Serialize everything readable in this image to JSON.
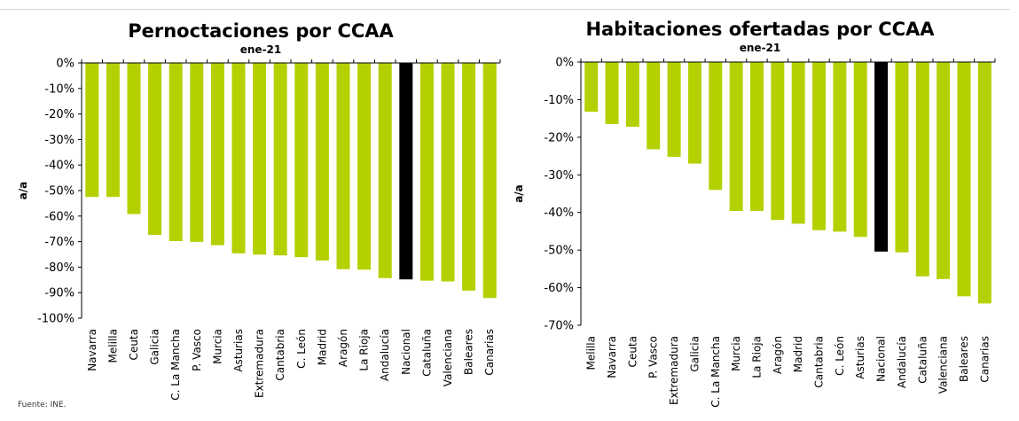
{
  "source": "Fuente: INE.",
  "colors": {
    "bar": "#B5D000",
    "highlight": "#000000",
    "axis": "#000000"
  },
  "chart_data": [
    {
      "type": "bar",
      "title": "Pernoctaciones por CCAA",
      "subtitle": "ene-21",
      "ylabel": "a/a",
      "ylim": [
        -100,
        0
      ],
      "yticks": [
        0,
        -10,
        -20,
        -30,
        -40,
        -50,
        -60,
        -70,
        -80,
        -90,
        -100
      ],
      "ytick_labels": [
        "0%",
        "-10%",
        "-20%",
        "-30%",
        "-40%",
        "-50%",
        "-60%",
        "-70%",
        "-80%",
        "-90%",
        "-100%"
      ],
      "highlight": "Nacional",
      "categories": [
        "Navarra",
        "Melilla",
        "Ceuta",
        "Galicia",
        "C. La Mancha",
        "P. Vasco",
        "Murcia",
        "Asturias",
        "Extremadura",
        "Cantabria",
        "C. León",
        "Madrid",
        "Aragón",
        "La Rioja",
        "Andalucía",
        "Nacional",
        "Cataluña",
        "Valenciana",
        "Baleares",
        "Canarias"
      ],
      "values": [
        -52.5,
        -52.5,
        -59.2,
        -67.4,
        -69.8,
        -70.1,
        -71.4,
        -74.6,
        -75.1,
        -75.4,
        -76.1,
        -77.4,
        -80.8,
        -81.0,
        -84.3,
        -84.8,
        -85.3,
        -85.6,
        -89.2,
        -92.1
      ]
    },
    {
      "type": "bar",
      "title": "Habitaciones ofertadas por CCAA",
      "subtitle": "ene-21",
      "ylabel": "a/a",
      "ylim": [
        -70,
        0
      ],
      "yticks": [
        0,
        -10,
        -20,
        -30,
        -40,
        -50,
        -60,
        -70
      ],
      "ytick_labels": [
        "0%",
        "-10%",
        "-20%",
        "-30%",
        "-40%",
        "-50%",
        "-60%",
        "-70%"
      ],
      "highlight": "Nacional",
      "categories": [
        "Melilla",
        "Navarra",
        "Ceuta",
        "P. Vasco",
        "Extremadura",
        "Galicia",
        "C. La Mancha",
        "Murcia",
        "La Rioja",
        "Aragón",
        "Madrid",
        "Cantabria",
        "C. León",
        "Asturias",
        "Nacional",
        "Andalucía",
        "Cataluña",
        "Valenciana",
        "Baleares",
        "Canarias"
      ],
      "values": [
        -13.2,
        -16.5,
        -17.2,
        -23.2,
        -25.2,
        -27.0,
        -34.0,
        -39.6,
        -39.6,
        -42.0,
        -43.0,
        -44.7,
        -45.1,
        -46.5,
        -50.4,
        -50.6,
        -57.0,
        -57.7,
        -62.3,
        -64.2
      ]
    }
  ]
}
